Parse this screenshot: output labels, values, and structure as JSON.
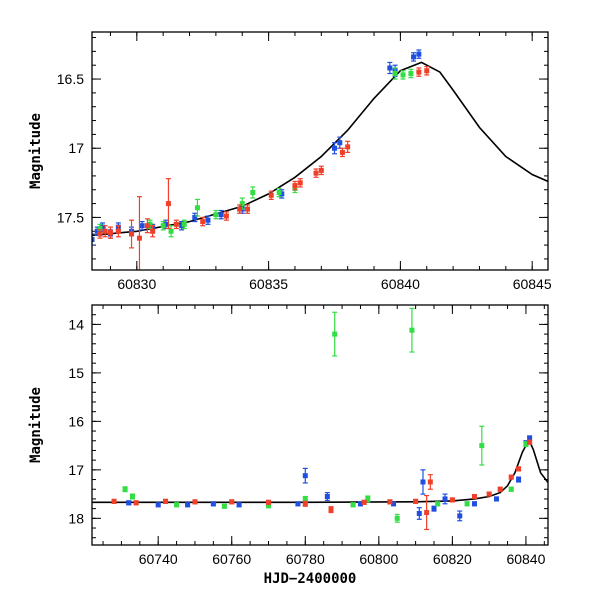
{
  "colors": {
    "blue": "#1f4fe0",
    "green": "#33dd44",
    "red": "#f0402a",
    "model": "#000000"
  },
  "chart_data": [
    {
      "type": "scatter",
      "panel": "top",
      "xlabel": "",
      "ylabel": "Magnitude",
      "xlim": [
        60828.3,
        60845.6
      ],
      "ylim": [
        17.88,
        16.16
      ],
      "y_inverted": true,
      "x_ticks": [
        60830,
        60835,
        60840,
        60845
      ],
      "x_tick_labels": [
        "60830",
        "60835",
        "60840",
        "60845"
      ],
      "y_ticks": [
        16.5,
        17,
        17.5
      ],
      "y_tick_labels": [
        "16.5",
        "17",
        "17.5"
      ],
      "grid": false,
      "legend": "none",
      "series": [
        {
          "color": "blue",
          "points": [
            [
              60828.3,
              17.66,
              0.04
            ],
            [
              60828.5,
              17.6,
              0.03
            ],
            [
              60828.7,
              17.57,
              0.03
            ],
            [
              60829.0,
              17.62,
              0.03
            ],
            [
              60829.3,
              17.57,
              0.03
            ],
            [
              60829.8,
              17.6,
              0.03
            ],
            [
              60830.2,
              17.56,
              0.03
            ],
            [
              60830.6,
              17.58,
              0.03
            ],
            [
              60831.1,
              17.55,
              0.03
            ],
            [
              60831.7,
              17.56,
              0.03
            ],
            [
              60832.2,
              17.5,
              0.03
            ],
            [
              60832.7,
              17.52,
              0.03
            ],
            [
              60833.2,
              17.48,
              0.03
            ],
            [
              60834.0,
              17.44,
              0.03
            ],
            [
              60835.5,
              17.33,
              0.03
            ],
            [
              60837.5,
              17.0,
              0.04
            ],
            [
              60837.7,
              16.96,
              0.04
            ],
            [
              60839.6,
              16.42,
              0.04
            ],
            [
              60839.8,
              16.44,
              0.04
            ],
            [
              60840.5,
              16.34,
              0.03
            ],
            [
              60840.7,
              16.32,
              0.03
            ]
          ]
        },
        {
          "color": "green",
          "points": [
            [
              60828.6,
              17.58,
              0.03
            ],
            [
              60830.5,
              17.55,
              0.03
            ],
            [
              60831.0,
              17.56,
              0.03
            ],
            [
              60831.3,
              17.6,
              0.04
            ],
            [
              60831.8,
              17.55,
              0.03
            ],
            [
              60832.3,
              17.43,
              0.06
            ],
            [
              60833.0,
              17.48,
              0.03
            ],
            [
              60834.0,
              17.4,
              0.04
            ],
            [
              60834.4,
              17.32,
              0.04
            ],
            [
              60835.4,
              17.32,
              0.03
            ],
            [
              60836.0,
              17.29,
              0.03
            ],
            [
              60839.8,
              16.46,
              0.04
            ],
            [
              60840.1,
              16.47,
              0.03
            ],
            [
              60840.4,
              16.46,
              0.03
            ]
          ]
        },
        {
          "color": "red",
          "points": [
            [
              60828.6,
              17.62,
              0.03
            ],
            [
              60828.8,
              17.6,
              0.04
            ],
            [
              60829.0,
              17.61,
              0.04
            ],
            [
              60829.3,
              17.6,
              0.04
            ],
            [
              60829.8,
              17.62,
              0.1
            ],
            [
              60830.1,
              17.65,
              0.3
            ],
            [
              60830.4,
              17.56,
              0.05
            ],
            [
              60830.6,
              17.6,
              0.04
            ],
            [
              60831.2,
              17.4,
              0.18
            ],
            [
              60831.5,
              17.55,
              0.03
            ],
            [
              60832.5,
              17.53,
              0.03
            ],
            [
              60833.4,
              17.49,
              0.03
            ],
            [
              60833.9,
              17.44,
              0.03
            ],
            [
              60834.2,
              17.44,
              0.03
            ],
            [
              60835.1,
              17.34,
              0.03
            ],
            [
              60836.0,
              17.27,
              0.03
            ],
            [
              60836.2,
              17.25,
              0.03
            ],
            [
              60836.8,
              17.18,
              0.03
            ],
            [
              60837.0,
              17.16,
              0.03
            ],
            [
              60837.8,
              17.03,
              0.03
            ],
            [
              60838.0,
              16.99,
              0.04
            ],
            [
              60840.7,
              16.45,
              0.03
            ],
            [
              60841.0,
              16.44,
              0.03
            ]
          ]
        }
      ],
      "model": [
        [
          60828.3,
          17.63
        ],
        [
          60830,
          17.6
        ],
        [
          60832,
          17.53
        ],
        [
          60834,
          17.42
        ],
        [
          60835,
          17.33
        ],
        [
          60836,
          17.21
        ],
        [
          60837,
          17.06
        ],
        [
          60838,
          16.87
        ],
        [
          60839,
          16.64
        ],
        [
          60840,
          16.44
        ],
        [
          60840.8,
          16.38
        ],
        [
          60841.5,
          16.45
        ],
        [
          60842,
          16.58
        ],
        [
          60843,
          16.85
        ],
        [
          60844,
          17.06
        ],
        [
          60845,
          17.19
        ],
        [
          60845.6,
          17.24
        ]
      ]
    },
    {
      "type": "scatter",
      "panel": "bottom",
      "xlabel": "HJD−2400000",
      "ylabel": "Magnitude",
      "xlim": [
        60722,
        60846
      ],
      "ylim": [
        18.55,
        13.6
      ],
      "y_inverted": true,
      "x_ticks": [
        60740,
        60760,
        60780,
        60800,
        60820,
        60840
      ],
      "x_tick_labels": [
        "60740",
        "60760",
        "60780",
        "60800",
        "60820",
        "60840"
      ],
      "y_ticks": [
        14,
        15,
        16,
        17,
        18
      ],
      "y_tick_labels": [
        "14",
        "15",
        "16",
        "17",
        "18"
      ],
      "grid": false,
      "legend": "none",
      "series": [
        {
          "color": "blue",
          "points": [
            [
              60732,
              17.68,
              0.04
            ],
            [
              60740,
              17.72,
              0.04
            ],
            [
              60748,
              17.72,
              0.04
            ],
            [
              60755,
              17.7,
              0.04
            ],
            [
              60762,
              17.72,
              0.04
            ],
            [
              60770,
              17.7,
              0.04
            ],
            [
              60778,
              17.7,
              0.04
            ],
            [
              60780,
              17.12,
              0.15
            ],
            [
              60786,
              17.55,
              0.08
            ],
            [
              60795,
              17.7,
              0.04
            ],
            [
              60804,
              17.7,
              0.04
            ],
            [
              60811,
              17.9,
              0.12
            ],
            [
              60812,
              17.25,
              0.25
            ],
            [
              60815,
              17.8,
              0.05
            ],
            [
              60818,
              17.6,
              0.1
            ],
            [
              60822,
              17.95,
              0.1
            ],
            [
              60826,
              17.7,
              0.04
            ],
            [
              60832,
              17.6,
              0.04
            ],
            [
              60838,
              17.2,
              0.05
            ],
            [
              60840,
              16.45,
              0.05
            ],
            [
              60841,
              16.35,
              0.05
            ]
          ]
        },
        {
          "color": "green",
          "points": [
            [
              60731,
              17.4,
              0.05
            ],
            [
              60733,
              17.55,
              0.05
            ],
            [
              60745,
              17.72,
              0.04
            ],
            [
              60758,
              17.75,
              0.04
            ],
            [
              60770,
              17.74,
              0.04
            ],
            [
              60780,
              17.6,
              0.05
            ],
            [
              60788,
              14.2,
              0.45
            ],
            [
              60793,
              17.72,
              0.04
            ],
            [
              60797,
              17.6,
              0.06
            ],
            [
              60805,
              18.0,
              0.08
            ],
            [
              60809,
              14.12,
              0.45
            ],
            [
              60816,
              17.7,
              0.04
            ],
            [
              60824,
              17.7,
              0.04
            ],
            [
              60828,
              16.5,
              0.4
            ],
            [
              60836,
              17.4,
              0.04
            ],
            [
              60840,
              16.47,
              0.05
            ]
          ]
        },
        {
          "color": "red",
          "points": [
            [
              60728,
              17.65,
              0.04
            ],
            [
              60734,
              17.68,
              0.04
            ],
            [
              60742,
              17.65,
              0.04
            ],
            [
              60750,
              17.66,
              0.04
            ],
            [
              60760,
              17.66,
              0.04
            ],
            [
              60770,
              17.67,
              0.04
            ],
            [
              60780,
              17.7,
              0.05
            ],
            [
              60787,
              17.82,
              0.06
            ],
            [
              60796,
              17.67,
              0.04
            ],
            [
              60803,
              17.66,
              0.04
            ],
            [
              60810,
              17.65,
              0.04
            ],
            [
              60813,
              17.88,
              0.35
            ],
            [
              60814,
              17.25,
              0.15
            ],
            [
              60820,
              17.62,
              0.04
            ],
            [
              60826,
              17.55,
              0.04
            ],
            [
              60830,
              17.5,
              0.04
            ],
            [
              60833,
              17.4,
              0.04
            ],
            [
              60836,
              17.15,
              0.04
            ],
            [
              60838,
              16.98,
              0.04
            ],
            [
              60841,
              16.43,
              0.04
            ]
          ]
        }
      ],
      "model": [
        [
          60722,
          17.67
        ],
        [
          60780,
          17.67
        ],
        [
          60810,
          17.66
        ],
        [
          60820,
          17.64
        ],
        [
          60826,
          17.6
        ],
        [
          60830,
          17.55
        ],
        [
          60833,
          17.47
        ],
        [
          60835,
          17.33
        ],
        [
          60837,
          17.06
        ],
        [
          60839,
          16.64
        ],
        [
          60840.8,
          16.38
        ],
        [
          60842,
          16.58
        ],
        [
          60844,
          17.06
        ],
        [
          60846,
          17.26
        ]
      ]
    }
  ]
}
